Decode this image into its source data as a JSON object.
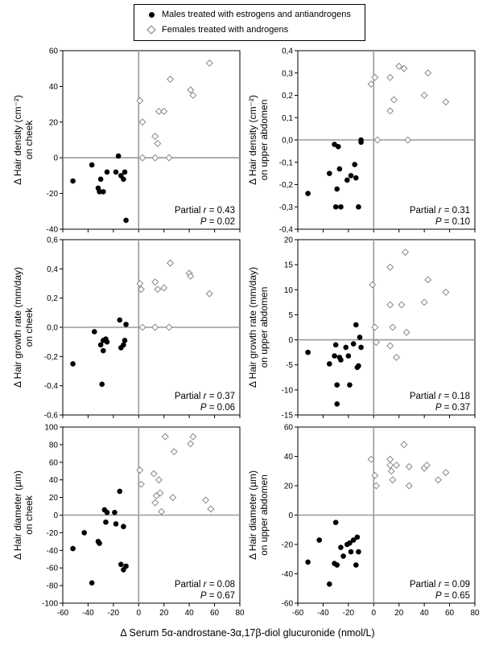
{
  "legend": {
    "males_label": "Males treated with estrogens and antiandrogens",
    "females_label": "Females treated with androgens"
  },
  "shared_xlabel": "Δ Serum 5α-androstane-3α,17β-diol glucuronide (nmol/L)",
  "colors": {
    "males": "#000000",
    "females": "#ffffff",
    "female_stroke": "#888888",
    "axis_zero": "#999999"
  },
  "chart_data": [
    {
      "type": "scatter",
      "ylabel": [
        "Δ Hair density (cm⁻²)",
        "on cheek"
      ],
      "xlim": [
        -60,
        80
      ],
      "ylim": [
        -40,
        60
      ],
      "yticks": [
        -40,
        -20,
        0,
        20,
        40,
        60
      ],
      "ytick_labels": [
        "-40",
        "-20",
        "0",
        "20",
        "40",
        "60"
      ],
      "annotation_r": "0.43",
      "annotation_p": "0.02",
      "series": [
        {
          "name": "Males treated with estrogens and antiandrogens",
          "points": [
            [
              -52,
              -13
            ],
            [
              -37,
              -4
            ],
            [
              -32,
              -17
            ],
            [
              -30,
              -12
            ],
            [
              -31,
              -19
            ],
            [
              -28,
              -19
            ],
            [
              -25,
              -8
            ],
            [
              -18,
              -8
            ],
            [
              -16,
              1
            ],
            [
              -14,
              -10
            ],
            [
              -12,
              -12
            ],
            [
              -11,
              -8
            ],
            [
              -10,
              -35
            ]
          ]
        },
        {
          "name": "Females treated with androgens",
          "points": [
            [
              1,
              32
            ],
            [
              3,
              20
            ],
            [
              3,
              0
            ],
            [
              13,
              0
            ],
            [
              13,
              12
            ],
            [
              15,
              8
            ],
            [
              16,
              26
            ],
            [
              20,
              26
            ],
            [
              24,
              0
            ],
            [
              25,
              44
            ],
            [
              41,
              38
            ],
            [
              43,
              35
            ],
            [
              56,
              53
            ]
          ]
        }
      ]
    },
    {
      "type": "scatter",
      "ylabel": [
        "Δ Hair density (cm⁻²)",
        "on upper abdomen"
      ],
      "xlim": [
        -60,
        80
      ],
      "ylim": [
        -0.4,
        0.4
      ],
      "yticks": [
        -0.4,
        -0.3,
        -0.2,
        -0.1,
        0,
        0.1,
        0.2,
        0.3,
        0.4
      ],
      "ytick_labels": [
        "-0,4",
        "-0,3",
        "-0,2",
        "-0,1",
        "0,0",
        "0,1",
        "0,2",
        "0,3",
        "0,4"
      ],
      "annotation_r": "0.31",
      "annotation_p": "0.10",
      "series": [
        {
          "name": "Males treated with estrogens and antiandrogens",
          "points": [
            [
              -52,
              -0.24
            ],
            [
              -35,
              -0.15
            ],
            [
              -31,
              -0.02
            ],
            [
              -29,
              -0.22
            ],
            [
              -28,
              -0.03
            ],
            [
              -30,
              -0.3
            ],
            [
              -27,
              -0.13
            ],
            [
              -26,
              -0.3
            ],
            [
              -21,
              -0.18
            ],
            [
              -18,
              -0.16
            ],
            [
              -15,
              -0.11
            ],
            [
              -14,
              -0.17
            ],
            [
              -12,
              -0.3
            ],
            [
              -10,
              -0.01
            ],
            [
              -10,
              0
            ]
          ]
        },
        {
          "name": "Females treated with androgens",
          "points": [
            [
              -2,
              0.25
            ],
            [
              1,
              0.28
            ],
            [
              3,
              0
            ],
            [
              13,
              0.28
            ],
            [
              13,
              0.13
            ],
            [
              16,
              0.18
            ],
            [
              20,
              0.33
            ],
            [
              24,
              0.32
            ],
            [
              27,
              0
            ],
            [
              40,
              0.2
            ],
            [
              43,
              0.3
            ],
            [
              57,
              0.17
            ]
          ]
        }
      ]
    },
    {
      "type": "scatter",
      "ylabel": [
        "Δ Hair growth rate (mm/day)",
        "on cheek"
      ],
      "xlim": [
        -60,
        80
      ],
      "ylim": [
        -0.6,
        0.6
      ],
      "yticks": [
        -0.6,
        -0.4,
        -0.2,
        0,
        0.2,
        0.4,
        0.6
      ],
      "ytick_labels": [
        "-0,6",
        "-0,4",
        "-0,2",
        "0,0",
        "0,2",
        "0,4",
        "0,6"
      ],
      "annotation_r": "0.37",
      "annotation_p": "0.06",
      "series": [
        {
          "name": "Males treated with estrogens and antiandrogens",
          "points": [
            [
              -52,
              -0.25
            ],
            [
              -35,
              -0.03
            ],
            [
              -30,
              -0.12
            ],
            [
              -28,
              -0.09
            ],
            [
              -28,
              -0.16
            ],
            [
              -26,
              -0.08
            ],
            [
              -25,
              -0.1
            ],
            [
              -29,
              -0.39
            ],
            [
              -15,
              0.05
            ],
            [
              -14,
              -0.14
            ],
            [
              -12,
              -0.12
            ],
            [
              -11,
              -0.09
            ],
            [
              -10,
              0.02
            ]
          ]
        },
        {
          "name": "Females treated with androgens",
          "points": [
            [
              1,
              0.3
            ],
            [
              2,
              0.26
            ],
            [
              3,
              0
            ],
            [
              13,
              0
            ],
            [
              13,
              0.31
            ],
            [
              15,
              0.26
            ],
            [
              20,
              0.27
            ],
            [
              24,
              0
            ],
            [
              25,
              0.44
            ],
            [
              40,
              0.37
            ],
            [
              41,
              0.35
            ],
            [
              56,
              0.23
            ]
          ]
        }
      ]
    },
    {
      "type": "scatter",
      "ylabel": [
        "Δ Hair growth rate (mm/day)",
        "on upper abdomen"
      ],
      "xlim": [
        -60,
        80
      ],
      "ylim": [
        -15,
        20
      ],
      "yticks": [
        -15,
        -10,
        -5,
        0,
        5,
        10,
        15,
        20
      ],
      "ytick_labels": [
        "-15",
        "-10",
        "-5",
        "0",
        "5",
        "10",
        "15",
        "20"
      ],
      "annotation_r": "0.18",
      "annotation_p": "0.37",
      "series": [
        {
          "name": "Males treated with estrogens and antiandrogens",
          "points": [
            [
              -52,
              -2.5
            ],
            [
              -35,
              -4.8
            ],
            [
              -31,
              -3.2
            ],
            [
              -30,
              -1
            ],
            [
              -29,
              -9
            ],
            [
              -29,
              -12.8
            ],
            [
              -27,
              -3.5
            ],
            [
              -26,
              -4
            ],
            [
              -22,
              -1.5
            ],
            [
              -20,
              -3.2
            ],
            [
              -19,
              -9
            ],
            [
              -16,
              -0.8
            ],
            [
              -14,
              3
            ],
            [
              -13,
              -5.5
            ],
            [
              -12,
              -5.2
            ],
            [
              -11,
              0.5
            ],
            [
              -10,
              -1.5
            ]
          ]
        },
        {
          "name": "Females treated with androgens",
          "points": [
            [
              -1,
              11
            ],
            [
              1,
              2.5
            ],
            [
              2,
              -0.5
            ],
            [
              13,
              14.5
            ],
            [
              13,
              7
            ],
            [
              13,
              -1.2
            ],
            [
              15,
              2.5
            ],
            [
              18,
              -3.5
            ],
            [
              22,
              7
            ],
            [
              25,
              17.5
            ],
            [
              26,
              1.5
            ],
            [
              40,
              7.5
            ],
            [
              43,
              12
            ],
            [
              57,
              9.5
            ]
          ]
        }
      ]
    },
    {
      "type": "scatter",
      "ylabel": [
        "Δ Hair diameter (µm)",
        "on cheek"
      ],
      "xlim": [
        -60,
        80
      ],
      "ylim": [
        -100,
        100
      ],
      "yticks": [
        -100,
        -80,
        -60,
        -40,
        -20,
        0,
        20,
        40,
        60,
        80,
        100
      ],
      "ytick_labels": [
        "-100",
        "-80",
        "-60",
        "-40",
        "-20",
        "0",
        "20",
        "40",
        "60",
        "80",
        "100"
      ],
      "annotation_r": "0.08",
      "annotation_p": "0.67",
      "series": [
        {
          "name": "Males treated with estrogens and antiandrogens",
          "points": [
            [
              -52,
              -38
            ],
            [
              -43,
              -20
            ],
            [
              -37,
              -77
            ],
            [
              -32,
              -30
            ],
            [
              -31,
              -32
            ],
            [
              -27,
              6
            ],
            [
              -26,
              -8
            ],
            [
              -25,
              3
            ],
            [
              -19,
              3
            ],
            [
              -18,
              -10
            ],
            [
              -15,
              27
            ],
            [
              -14,
              -56
            ],
            [
              -12,
              -13
            ],
            [
              -12,
              -62
            ],
            [
              -10,
              -58
            ]
          ]
        },
        {
          "name": "Females treated with androgens",
          "points": [
            [
              1,
              51
            ],
            [
              2,
              35
            ],
            [
              12,
              47
            ],
            [
              13,
              14
            ],
            [
              14,
              22
            ],
            [
              16,
              40
            ],
            [
              17,
              25
            ],
            [
              18,
              4
            ],
            [
              21,
              89
            ],
            [
              27,
              20
            ],
            [
              28,
              72
            ],
            [
              41,
              81
            ],
            [
              43,
              89
            ],
            [
              53,
              17
            ],
            [
              57,
              7
            ]
          ]
        }
      ]
    },
    {
      "type": "scatter",
      "ylabel": [
        "Δ Hair diameter (µm)",
        "on upper abdomen"
      ],
      "xlim": [
        -60,
        80
      ],
      "ylim": [
        -60,
        60
      ],
      "yticks": [
        -60,
        -40,
        -20,
        0,
        20,
        40,
        60
      ],
      "ytick_labels": [
        "-60",
        "-40",
        "-20",
        "0",
        "20",
        "40",
        "60"
      ],
      "annotation_r": "0.09",
      "annotation_p": "0.65",
      "series": [
        {
          "name": "Males treated with estrogens and antiandrogens",
          "points": [
            [
              -52,
              -32
            ],
            [
              -43,
              -17
            ],
            [
              -35,
              -47
            ],
            [
              -31,
              -33
            ],
            [
              -30,
              -5
            ],
            [
              -29,
              -34
            ],
            [
              -26,
              -22
            ],
            [
              -24,
              -28
            ],
            [
              -21,
              -20
            ],
            [
              -19,
              -19
            ],
            [
              -18,
              -25
            ],
            [
              -16,
              -17
            ],
            [
              -14,
              -34
            ],
            [
              -13,
              -15
            ],
            [
              -12,
              -25
            ]
          ]
        },
        {
          "name": "Females treated with androgens",
          "points": [
            [
              -2,
              38
            ],
            [
              1,
              27
            ],
            [
              2,
              20
            ],
            [
              13,
              34
            ],
            [
              13,
              38
            ],
            [
              14,
              30
            ],
            [
              15,
              24
            ],
            [
              18,
              34
            ],
            [
              24,
              48
            ],
            [
              28,
              33
            ],
            [
              28,
              20
            ],
            [
              40,
              32
            ],
            [
              42,
              34
            ],
            [
              51,
              24
            ],
            [
              57,
              29
            ]
          ]
        }
      ]
    }
  ],
  "xaxis": {
    "ticks": [
      -60,
      -40,
      -20,
      0,
      20,
      40,
      60,
      80
    ],
    "tick_labels": [
      "-60",
      "-40",
      "-20",
      "0",
      "20",
      "40",
      "60",
      "80"
    ]
  },
  "labels": {
    "partial_r_prefix": "Partial ",
    "r_symbol": "r",
    "p_symbol": "P",
    "equals": " = "
  }
}
